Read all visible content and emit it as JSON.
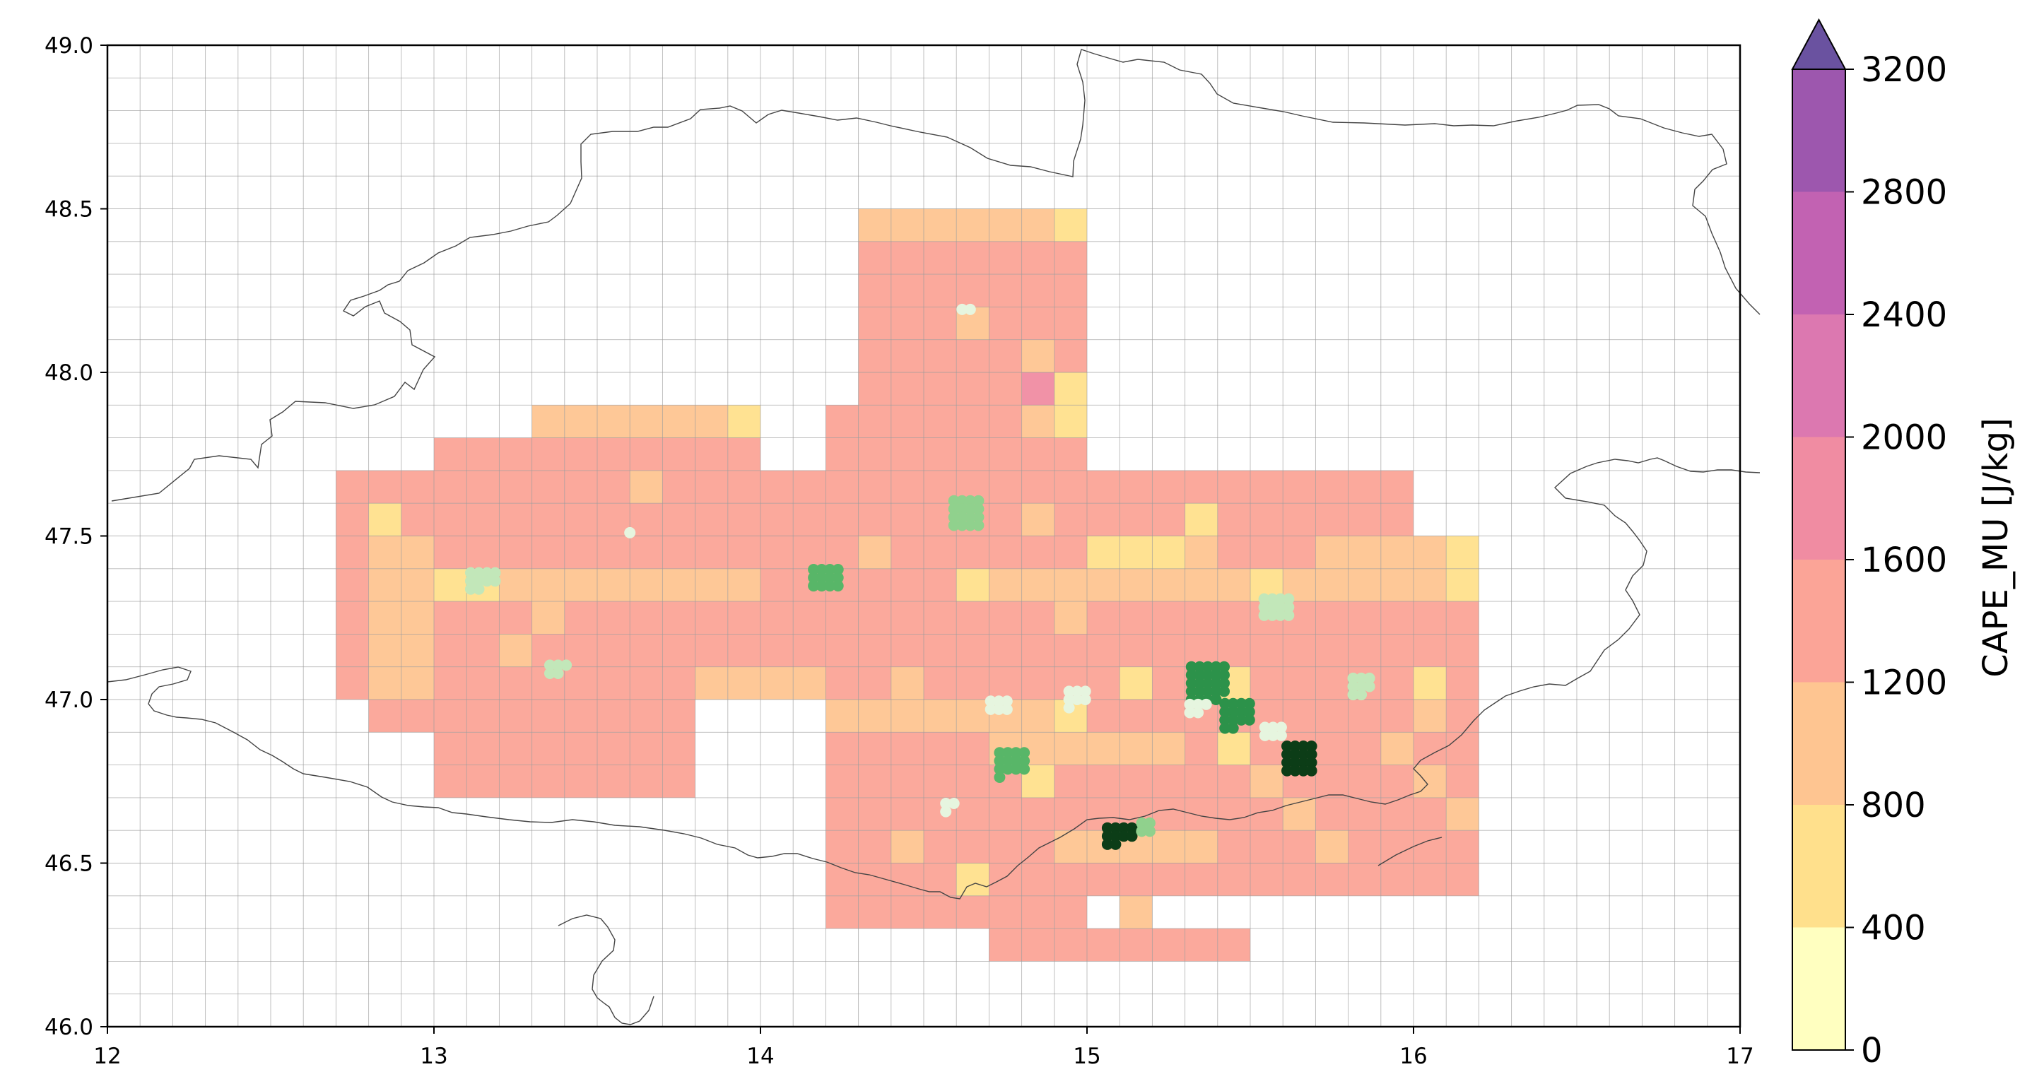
{
  "chart_data": {
    "type": "heatmap",
    "title": "",
    "x": {
      "range": [
        12,
        17
      ],
      "ticks": [
        "12",
        "13",
        "14",
        "15",
        "16",
        "17"
      ],
      "label": ""
    },
    "y": {
      "range": [
        46.0,
        49.0
      ],
      "ticks": [
        "46.0",
        "46.5",
        "47.0",
        "47.5",
        "48.0",
        "48.5",
        "49.0"
      ],
      "label": ""
    },
    "grid": {
      "on": true,
      "cell_size_deg": 0.1
    },
    "colorbar": {
      "label": "CAPE_MU  [J/kg]",
      "ticks": [
        "0",
        "400",
        "800",
        "1200",
        "1600",
        "2000",
        "2400",
        "2800",
        "3200"
      ],
      "levels": [
        0,
        400,
        800,
        1200,
        1600,
        2000,
        2400,
        2800,
        3200
      ],
      "colors": [
        "#ffffc0",
        "#ffe08c",
        "#fec591",
        "#fba497",
        "#f08ca2",
        "#dc78b0",
        "#c262b2",
        "#9d57ae"
      ],
      "extend": "max",
      "extend_color": "#6a52a0"
    },
    "cape_cells_note_level": "cells are 0.1 deg; value = CAPE_MU level index",
    "cape_blocks": [
      {
        "lon": [
          14.3,
          15.0
        ],
        "lat": [
          48.4,
          48.5
        ],
        "cls": 2
      },
      {
        "lon": [
          14.3,
          15.0
        ],
        "lat": [
          47.8,
          48.4
        ],
        "cls": 3
      },
      {
        "lon": [
          14.2,
          15.0
        ],
        "lat": [
          47.5,
          47.9
        ],
        "cls": 3
      },
      {
        "lon": [
          13.3,
          14.0
        ],
        "lat": [
          47.8,
          47.9
        ],
        "cls": 2
      },
      {
        "lon": [
          13.0,
          14.0
        ],
        "lat": [
          47.7,
          47.8
        ],
        "cls": 3
      },
      {
        "lon": [
          12.7,
          15.0
        ],
        "lat": [
          47.0,
          47.7
        ],
        "cls": 3
      },
      {
        "lon": [
          12.8,
          13.0
        ],
        "lat": [
          46.9,
          47.0
        ],
        "cls": 3
      },
      {
        "lon": [
          13.0,
          13.8
        ],
        "lat": [
          46.7,
          47.0
        ],
        "cls": 3
      },
      {
        "lon": [
          14.2,
          16.2
        ],
        "lat": [
          46.4,
          47.5
        ],
        "cls": 3
      },
      {
        "lon": [
          15.0,
          16.0
        ],
        "lat": [
          47.5,
          47.7
        ],
        "cls": 3
      },
      {
        "lon": [
          16.0,
          16.2
        ],
        "lat": [
          46.6,
          47.5
        ],
        "cls": 3
      },
      {
        "lon": [
          14.2,
          15.0
        ],
        "lat": [
          46.3,
          46.4
        ],
        "cls": 3
      },
      {
        "lon": [
          14.7,
          15.5
        ],
        "lat": [
          46.2,
          46.3
        ],
        "cls": 3
      },
      {
        "lon": [
          12.8,
          13.0
        ],
        "lat": [
          47.0,
          47.5
        ],
        "cls": 2
      },
      {
        "lon": [
          13.0,
          14.0
        ],
        "lat": [
          47.3,
          47.4
        ],
        "cls": 2
      },
      {
        "lon": [
          13.8,
          14.2
        ],
        "lat": [
          47.0,
          47.1
        ],
        "cls": 2
      },
      {
        "lon": [
          14.2,
          15.0
        ],
        "lat": [
          46.9,
          47.0
        ],
        "cls": 2
      },
      {
        "lon": [
          14.7,
          15.3
        ],
        "lat": [
          46.8,
          46.9
        ],
        "cls": 2
      },
      {
        "lon": [
          14.7,
          16.2
        ],
        "lat": [
          47.3,
          47.4
        ],
        "cls": 2
      },
      {
        "lon": [
          15.0,
          15.4
        ],
        "lat": [
          47.4,
          47.5
        ],
        "cls": 2
      },
      {
        "lon": [
          15.7,
          16.2
        ],
        "lat": [
          47.4,
          47.5
        ],
        "cls": 2
      },
      {
        "lon": [
          15.0,
          15.4
        ],
        "lat": [
          46.5,
          46.6
        ],
        "cls": 2
      }
    ],
    "cape_cells": [
      [
        14.6,
        48.4,
        2
      ],
      [
        14.9,
        48.4,
        1
      ],
      [
        14.6,
        48.1,
        2
      ],
      [
        14.8,
        48.0,
        2
      ],
      [
        14.9,
        47.8,
        1
      ],
      [
        14.9,
        47.9,
        1
      ],
      [
        14.8,
        47.9,
        4
      ],
      [
        14.8,
        47.8,
        2
      ],
      [
        13.9,
        47.8,
        1
      ],
      [
        13.6,
        47.6,
        2
      ],
      [
        12.8,
        47.5,
        1
      ],
      [
        13.0,
        47.3,
        1
      ],
      [
        13.1,
        47.3,
        1
      ],
      [
        13.2,
        47.1,
        2
      ],
      [
        12.9,
        47.1,
        2
      ],
      [
        13.3,
        47.2,
        2
      ],
      [
        14.3,
        47.4,
        2
      ],
      [
        14.8,
        47.5,
        2
      ],
      [
        14.6,
        47.3,
        1
      ],
      [
        15.3,
        47.5,
        1
      ],
      [
        15.0,
        47.4,
        1
      ],
      [
        15.1,
        47.4,
        1
      ],
      [
        15.2,
        47.4,
        1
      ],
      [
        16.1,
        47.4,
        1
      ],
      [
        16.1,
        47.3,
        1
      ],
      [
        15.5,
        47.3,
        1
      ],
      [
        14.4,
        47.0,
        2
      ],
      [
        15.1,
        47.0,
        1
      ],
      [
        15.4,
        47.0,
        1
      ],
      [
        16.0,
        47.0,
        1
      ],
      [
        16.0,
        46.9,
        2
      ],
      [
        15.9,
        46.8,
        2
      ],
      [
        14.9,
        46.9,
        1
      ],
      [
        15.4,
        46.8,
        1
      ],
      [
        16.0,
        46.7,
        2
      ],
      [
        16.1,
        46.6,
        2
      ],
      [
        15.6,
        46.6,
        2
      ],
      [
        15.7,
        46.5,
        2
      ],
      [
        14.4,
        46.5,
        2
      ],
      [
        14.9,
        46.5,
        2
      ],
      [
        15.1,
        46.3,
        2
      ],
      [
        14.6,
        46.4,
        1
      ],
      [
        14.8,
        46.7,
        1
      ],
      [
        15.2,
        46.9,
        3
      ],
      [
        15.4,
        46.9,
        3
      ],
      [
        15.5,
        46.7,
        2
      ],
      [
        14.9,
        47.2,
        2
      ]
    ],
    "lightning_colors": [
      "#e6f5df",
      "#c2e7b9",
      "#90d18d",
      "#58b668",
      "#2c924a",
      "#0a6b2b",
      "#0c3d17"
    ],
    "lightning_clusters": [
      {
        "lon": 13.15,
        "lat": 47.35,
        "n": 10,
        "shade": 1
      },
      {
        "lon": 13.38,
        "lat": 47.08,
        "n": 5,
        "shade": 1
      },
      {
        "lon": 13.6,
        "lat": 47.51,
        "n": 1,
        "shade": 0
      },
      {
        "lon": 14.2,
        "lat": 47.36,
        "n": 12,
        "shade": 3
      },
      {
        "lon": 14.63,
        "lat": 47.57,
        "n": 16,
        "shade": 2
      },
      {
        "lon": 14.63,
        "lat": 48.18,
        "n": 2,
        "shade": 0
      },
      {
        "lon": 14.73,
        "lat": 46.97,
        "n": 6,
        "shade": 0
      },
      {
        "lon": 14.58,
        "lat": 46.67,
        "n": 3,
        "shade": 0
      },
      {
        "lon": 14.77,
        "lat": 46.8,
        "n": 13,
        "shade": 3
      },
      {
        "lon": 14.97,
        "lat": 47.0,
        "n": 7,
        "shade": 0
      },
      {
        "lon": 15.1,
        "lat": 46.57,
        "n": 10,
        "shade": 6
      },
      {
        "lon": 15.18,
        "lat": 46.61,
        "n": 4,
        "shade": 2
      },
      {
        "lon": 15.37,
        "lat": 47.05,
        "n": 24,
        "shade": 4
      },
      {
        "lon": 15.46,
        "lat": 46.95,
        "n": 14,
        "shade": 4
      },
      {
        "lon": 15.34,
        "lat": 46.96,
        "n": 5,
        "shade": 0
      },
      {
        "lon": 15.58,
        "lat": 47.27,
        "n": 12,
        "shade": 1
      },
      {
        "lon": 15.65,
        "lat": 46.82,
        "n": 16,
        "shade": 6
      },
      {
        "lon": 15.57,
        "lat": 46.89,
        "n": 6,
        "shade": 0
      },
      {
        "lon": 15.84,
        "lat": 47.04,
        "n": 8,
        "shade": 1
      }
    ]
  }
}
